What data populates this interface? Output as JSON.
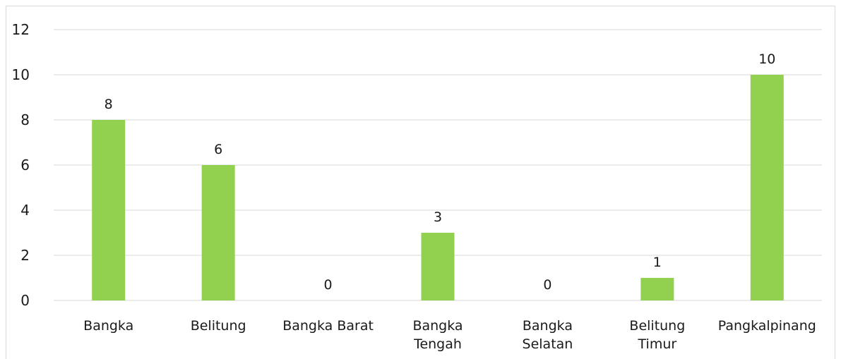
{
  "chart_data": {
    "type": "bar",
    "title": "",
    "xlabel": "",
    "ylabel": "",
    "categories": [
      [
        "Bangka"
      ],
      [
        "Belitung"
      ],
      [
        "Bangka Barat"
      ],
      [
        "Bangka",
        "Tengah"
      ],
      [
        "Bangka",
        "Selatan"
      ],
      [
        "Belitung",
        "Timur"
      ],
      [
        "Pangkalpinang"
      ]
    ],
    "values": [
      8,
      6,
      0,
      3,
      0,
      1,
      10
    ],
    "ylim": [
      0,
      12
    ],
    "yticks": [
      0,
      2,
      4,
      6,
      8,
      10,
      12
    ],
    "grid": true,
    "legend": "none",
    "bar_color": "#92d050",
    "gridline_color": "#d9d9d9",
    "text_color": "#1a1a1a"
  }
}
